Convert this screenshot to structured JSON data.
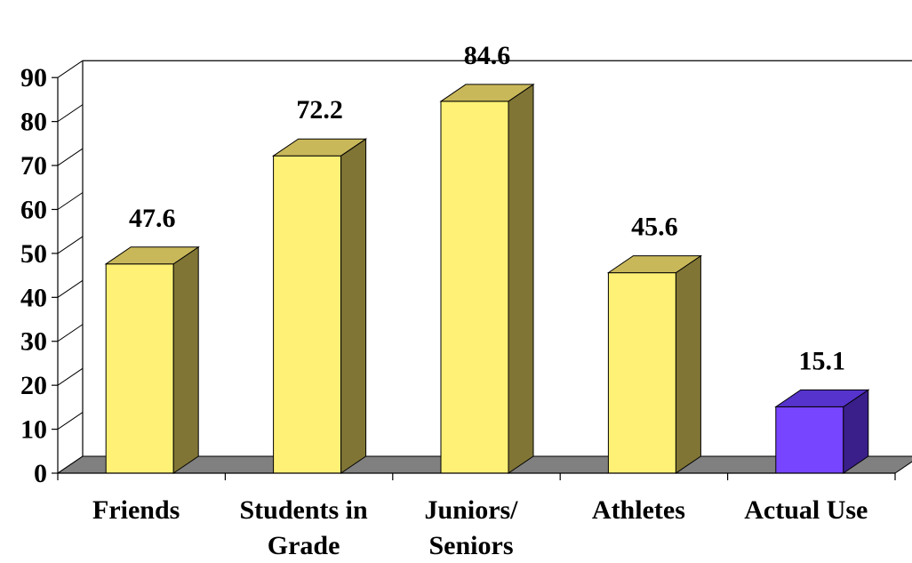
{
  "chart_data": {
    "type": "bar",
    "categories": [
      "Friends",
      "Students in Grade",
      "Juniors/ Seniors",
      "Athletes",
      "Actual Use"
    ],
    "category_lines": [
      [
        "Friends"
      ],
      [
        "Students in",
        "Grade"
      ],
      [
        "Juniors/",
        "Seniors"
      ],
      [
        "Athletes"
      ],
      [
        "Actual Use"
      ]
    ],
    "values": [
      47.6,
      72.2,
      84.6,
      45.6,
      15.1
    ],
    "data_labels": [
      "47.6",
      "72.2",
      "84.6",
      "45.6",
      "15.1"
    ],
    "title": "",
    "xlabel": "",
    "ylabel": "",
    "ylim": [
      0,
      90
    ],
    "yticks": [
      0,
      10,
      20,
      30,
      40,
      50,
      60,
      70,
      80,
      90
    ],
    "ytick_labels": [
      "0",
      "10",
      "20",
      "30",
      "40",
      "50",
      "60",
      "70",
      "80",
      "90"
    ],
    "grid": false,
    "legend": "none",
    "colors": {
      "bar_front": [
        "#fff176",
        "#fff176",
        "#fff176",
        "#fff176",
        "#7744ff"
      ],
      "bar_side": [
        "#807535",
        "#807535",
        "#807535",
        "#807535",
        "#3a1f8a"
      ],
      "bar_top": [
        "#c9b85a",
        "#c9b85a",
        "#c9b85a",
        "#c9b85a",
        "#5533cc"
      ],
      "floor": "#808080",
      "axis": "#000000"
    }
  }
}
